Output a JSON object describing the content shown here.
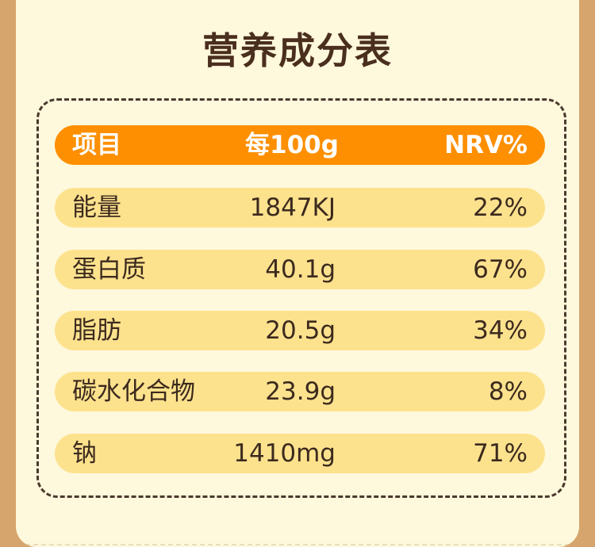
{
  "title": "营养成分表",
  "table": {
    "header": {
      "name": "项目",
      "amount": "每100g",
      "nrv": "NRV%"
    },
    "rows": [
      {
        "name": "能量",
        "amount": "1847KJ",
        "nrv": "22%"
      },
      {
        "name": "蛋白质",
        "amount": "40.1g",
        "nrv": "67%"
      },
      {
        "name": "脂肪",
        "amount": "20.5g",
        "nrv": "34%"
      },
      {
        "name": "碳水化合物",
        "amount": "23.9g",
        "nrv": "8%"
      },
      {
        "name": "钠",
        "amount": "1410mg",
        "nrv": "71%"
      }
    ]
  },
  "colors": {
    "background_frame": "#D5A56D",
    "card": "#FEF8DC",
    "header_row": "#FD8F00",
    "data_row": "#FDE28E",
    "text_dark": "#3C2A1E",
    "title": "#4A2E1E"
  }
}
